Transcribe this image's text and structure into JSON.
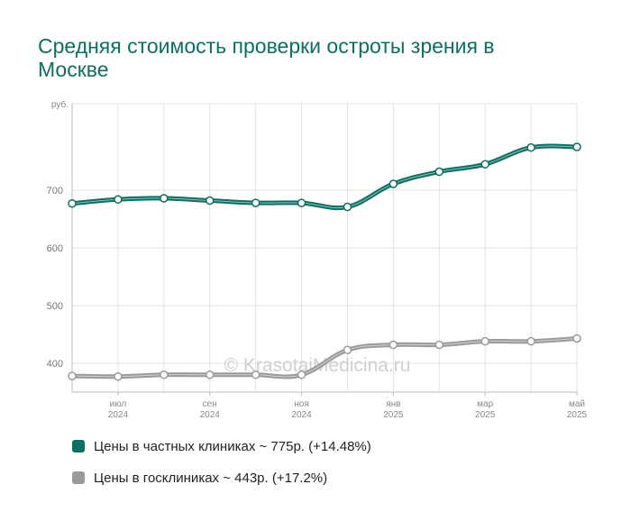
{
  "title": "Средняя стоимость проверки остроты зрения в Москве",
  "watermark": "© KrasotaiMedicina.ru",
  "chart_data": {
    "type": "line",
    "ylabel": "руб.",
    "ylim": [
      350,
      850
    ],
    "yticks": [
      400,
      500,
      600,
      700
    ],
    "x_points": [
      "2024-06",
      "2024-07",
      "2024-08",
      "2024-09",
      "2024-10",
      "2024-11",
      "2024-12",
      "2025-01",
      "2025-02",
      "2025-03",
      "2025-04",
      "2025-05"
    ],
    "x_ticks": [
      {
        "month": "июл",
        "year": "2024"
      },
      {
        "month": "сен",
        "year": "2024"
      },
      {
        "month": "ноя",
        "year": "2024"
      },
      {
        "month": "янв",
        "year": "2025"
      },
      {
        "month": "мар",
        "year": "2025"
      },
      {
        "month": "май",
        "year": "2025"
      }
    ],
    "x_tick_indices": [
      1,
      3,
      5,
      7,
      9,
      11
    ],
    "grid": true,
    "series": [
      {
        "name": "Цены в частных клиниках ~ 775р. (+14.48%)",
        "color": "#0d6e62",
        "values": [
          677,
          684,
          686,
          682,
          678,
          678,
          671,
          711,
          732,
          745,
          774,
          775
        ]
      },
      {
        "name": "Цены в госклиниках ~ 443р. (+17.2%)",
        "color": "#9a9a9a",
        "values": [
          378,
          377,
          380,
          380,
          380,
          380,
          423,
          432,
          432,
          438,
          438,
          443
        ]
      }
    ]
  }
}
